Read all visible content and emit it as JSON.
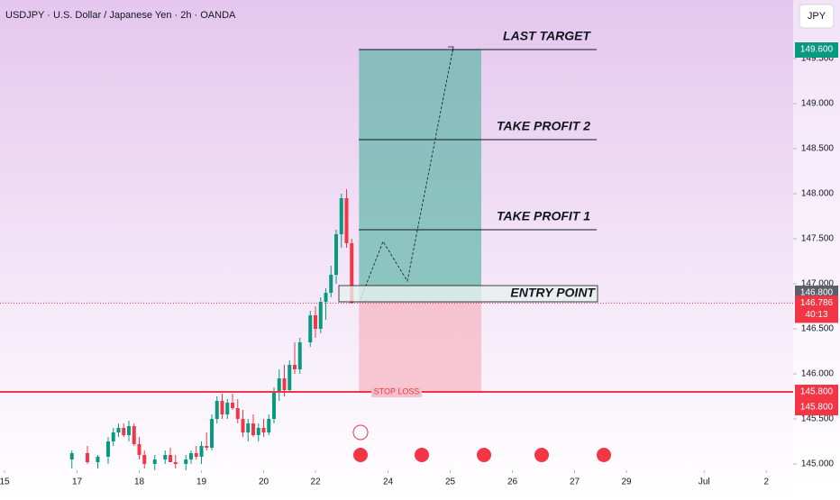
{
  "header": {
    "symbol_line": "USDJPY · U.S. Dollar / Japanese Yen · 2h · OANDA",
    "currency_button": "JPY"
  },
  "chart_data": {
    "type": "candlestick",
    "x": [
      13,
      16,
      18,
      20,
      21,
      22,
      23,
      24,
      25,
      26,
      27,
      29,
      31,
      32,
      33,
      35,
      36,
      37,
      38,
      39,
      40,
      41,
      42,
      43,
      44,
      45,
      46,
      47,
      48,
      49,
      50,
      51,
      52,
      53,
      54,
      55,
      56,
      57,
      59,
      60,
      61,
      62,
      63,
      64,
      65,
      66,
      67
    ],
    "open": [
      145.05,
      145.12,
      145.02,
      145.08,
      145.25,
      145.35,
      145.4,
      145.32,
      145.42,
      145.22,
      145.1,
      145.0,
      145.05,
      145.1,
      145.02,
      145.0,
      145.05,
      145.12,
      145.08,
      145.2,
      145.18,
      145.5,
      145.7,
      145.55,
      145.68,
      145.62,
      145.5,
      145.35,
      145.45,
      145.32,
      145.4,
      145.35,
      145.5,
      145.8,
      145.95,
      145.82,
      146.1,
      146.05,
      146.35,
      146.65,
      146.5,
      146.8,
      146.9,
      147.1,
      147.55,
      147.95,
      147.45
    ],
    "high": [
      145.15,
      145.2,
      145.1,
      145.3,
      145.4,
      145.45,
      145.45,
      145.48,
      145.45,
      145.3,
      145.15,
      145.1,
      145.15,
      145.18,
      145.1,
      145.1,
      145.15,
      145.2,
      145.25,
      145.35,
      145.55,
      145.75,
      145.78,
      145.72,
      145.78,
      145.72,
      145.6,
      145.5,
      145.55,
      145.45,
      145.5,
      145.55,
      145.85,
      146.05,
      146.1,
      146.15,
      146.35,
      146.4,
      146.7,
      146.75,
      146.85,
      146.95,
      147.2,
      147.6,
      148.0,
      148.05,
      147.5
    ],
    "low": [
      144.95,
      145.0,
      144.95,
      145.0,
      145.2,
      145.3,
      145.3,
      145.25,
      145.2,
      145.05,
      144.95,
      144.93,
      145.0,
      145.02,
      144.95,
      144.93,
      145.0,
      145.05,
      145.0,
      145.15,
      145.15,
      145.45,
      145.5,
      145.5,
      145.6,
      145.45,
      145.3,
      145.25,
      145.3,
      145.25,
      145.3,
      145.32,
      145.45,
      145.7,
      145.75,
      145.8,
      146.0,
      146.0,
      146.3,
      146.4,
      146.45,
      146.6,
      146.85,
      147.0,
      147.4,
      147.4,
      146.78
    ],
    "close": [
      145.12,
      145.02,
      145.08,
      145.25,
      145.35,
      145.4,
      145.32,
      145.42,
      145.22,
      145.1,
      145.0,
      145.05,
      145.1,
      145.02,
      145.0,
      145.05,
      145.12,
      145.08,
      145.2,
      145.18,
      145.5,
      145.7,
      145.55,
      145.68,
      145.62,
      145.5,
      145.35,
      145.45,
      145.32,
      145.4,
      145.35,
      145.5,
      145.8,
      145.95,
      145.82,
      146.1,
      146.05,
      146.35,
      146.65,
      146.5,
      146.8,
      146.9,
      147.1,
      147.55,
      147.95,
      147.45,
      146.786
    ],
    "up_color": "#089981",
    "down_color": "#f23645",
    "xlim": [
      0,
      152
    ],
    "xticks": [
      {
        "value": 0,
        "label": "15"
      },
      {
        "value": 14,
        "label": "17"
      },
      {
        "value": 26,
        "label": "18"
      },
      {
        "value": 38,
        "label": "19"
      },
      {
        "value": 50,
        "label": "20"
      },
      {
        "value": 60,
        "label": "22"
      },
      {
        "value": 74,
        "label": "24"
      },
      {
        "value": 86,
        "label": "25"
      },
      {
        "value": 98,
        "label": "26"
      },
      {
        "value": 110,
        "label": "27"
      },
      {
        "value": 120,
        "label": "29"
      },
      {
        "value": 135,
        "label": "Jul"
      },
      {
        "value": 147,
        "label": "2"
      }
    ],
    "ylim": [
      144.93,
      150.15
    ],
    "yticks": [
      {
        "value": 145,
        "label": "145.000"
      },
      {
        "value": 145.5,
        "label": "145.500"
      },
      {
        "value": 146,
        "label": "146.000"
      },
      {
        "value": 146.5,
        "label": "146.500"
      },
      {
        "value": 147,
        "label": "147.000"
      },
      {
        "value": 147.5,
        "label": "147.500"
      },
      {
        "value": 148,
        "label": "148.000"
      },
      {
        "value": 148.5,
        "label": "148.500"
      },
      {
        "value": 149,
        "label": "149.000"
      },
      {
        "value": 149.5,
        "label": "149.500"
      }
    ],
    "annotations": [
      {
        "label": "LAST TARGET",
        "value": 149.6
      },
      {
        "label": "TAKE PROFIT 2",
        "value": 148.6
      },
      {
        "label": "TAKE PROFIT 1",
        "value": 147.6
      },
      {
        "label": "ENTRY POINT",
        "value": 146.8
      },
      {
        "label": "STOP LOSS",
        "value": 145.8
      }
    ],
    "position": {
      "entry": 146.8,
      "target": 149.6,
      "stop": 145.8,
      "x_start": 68.4,
      "x_end": 92
    },
    "price_labels": [
      {
        "value": 149.6,
        "label": "149.600",
        "color": "#089981"
      },
      {
        "value": 146.8,
        "label": "146.800",
        "color": "#5d606b"
      },
      {
        "value": 146.786,
        "label": "146.786",
        "color": "#f23645",
        "countdown": "40:13"
      },
      {
        "value": 145.8,
        "label": "145.800",
        "color": "#f23645"
      },
      {
        "value": 145.8,
        "label": "145.800",
        "color": "#f23645"
      }
    ]
  }
}
